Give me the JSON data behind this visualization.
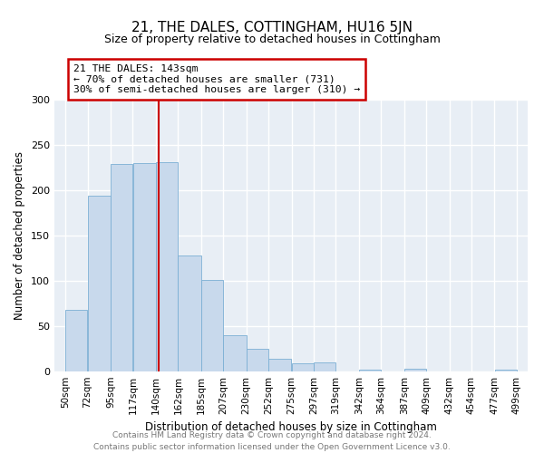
{
  "title": "21, THE DALES, COTTINGHAM, HU16 5JN",
  "subtitle": "Size of property relative to detached houses in Cottingham",
  "xlabel": "Distribution of detached houses by size in Cottingham",
  "ylabel": "Number of detached properties",
  "bar_color": "#c8d9ec",
  "bar_edge_color": "#7bafd4",
  "bar_left_edges": [
    50,
    72,
    95,
    117,
    140,
    162,
    185,
    207,
    230,
    252,
    275,
    297,
    319,
    342,
    364,
    387,
    409,
    432,
    454,
    477
  ],
  "bar_widths": [
    22,
    23,
    22,
    23,
    22,
    23,
    22,
    23,
    22,
    23,
    22,
    22,
    23,
    22,
    23,
    22,
    23,
    22,
    23,
    22
  ],
  "bar_heights": [
    68,
    194,
    229,
    230,
    231,
    128,
    101,
    40,
    25,
    14,
    9,
    10,
    0,
    2,
    0,
    3,
    0,
    0,
    0,
    2
  ],
  "tick_labels": [
    "50sqm",
    "72sqm",
    "95sqm",
    "117sqm",
    "140sqm",
    "162sqm",
    "185sqm",
    "207sqm",
    "230sqm",
    "252sqm",
    "275sqm",
    "297sqm",
    "319sqm",
    "342sqm",
    "364sqm",
    "387sqm",
    "409sqm",
    "432sqm",
    "454sqm",
    "477sqm",
    "499sqm"
  ],
  "tick_positions": [
    50,
    72,
    95,
    117,
    140,
    162,
    185,
    207,
    230,
    252,
    275,
    297,
    319,
    342,
    364,
    387,
    409,
    432,
    454,
    477,
    499
  ],
  "ylim": [
    0,
    300
  ],
  "yticks": [
    0,
    50,
    100,
    150,
    200,
    250,
    300
  ],
  "xlim_left": 39,
  "xlim_right": 510,
  "red_line_x": 143,
  "annotation_title": "21 THE DALES: 143sqm",
  "annotation_line1": "← 70% of detached houses are smaller (731)",
  "annotation_line2": "30% of semi-detached houses are larger (310) →",
  "annotation_box_color": "#ffffff",
  "annotation_box_edge_color": "#cc0000",
  "footer_line1": "Contains HM Land Registry data © Crown copyright and database right 2024.",
  "footer_line2": "Contains public sector information licensed under the Open Government Licence v3.0.",
  "background_color": "#ffffff",
  "plot_bg_color": "#e8eef5",
  "grid_color": "#ffffff"
}
